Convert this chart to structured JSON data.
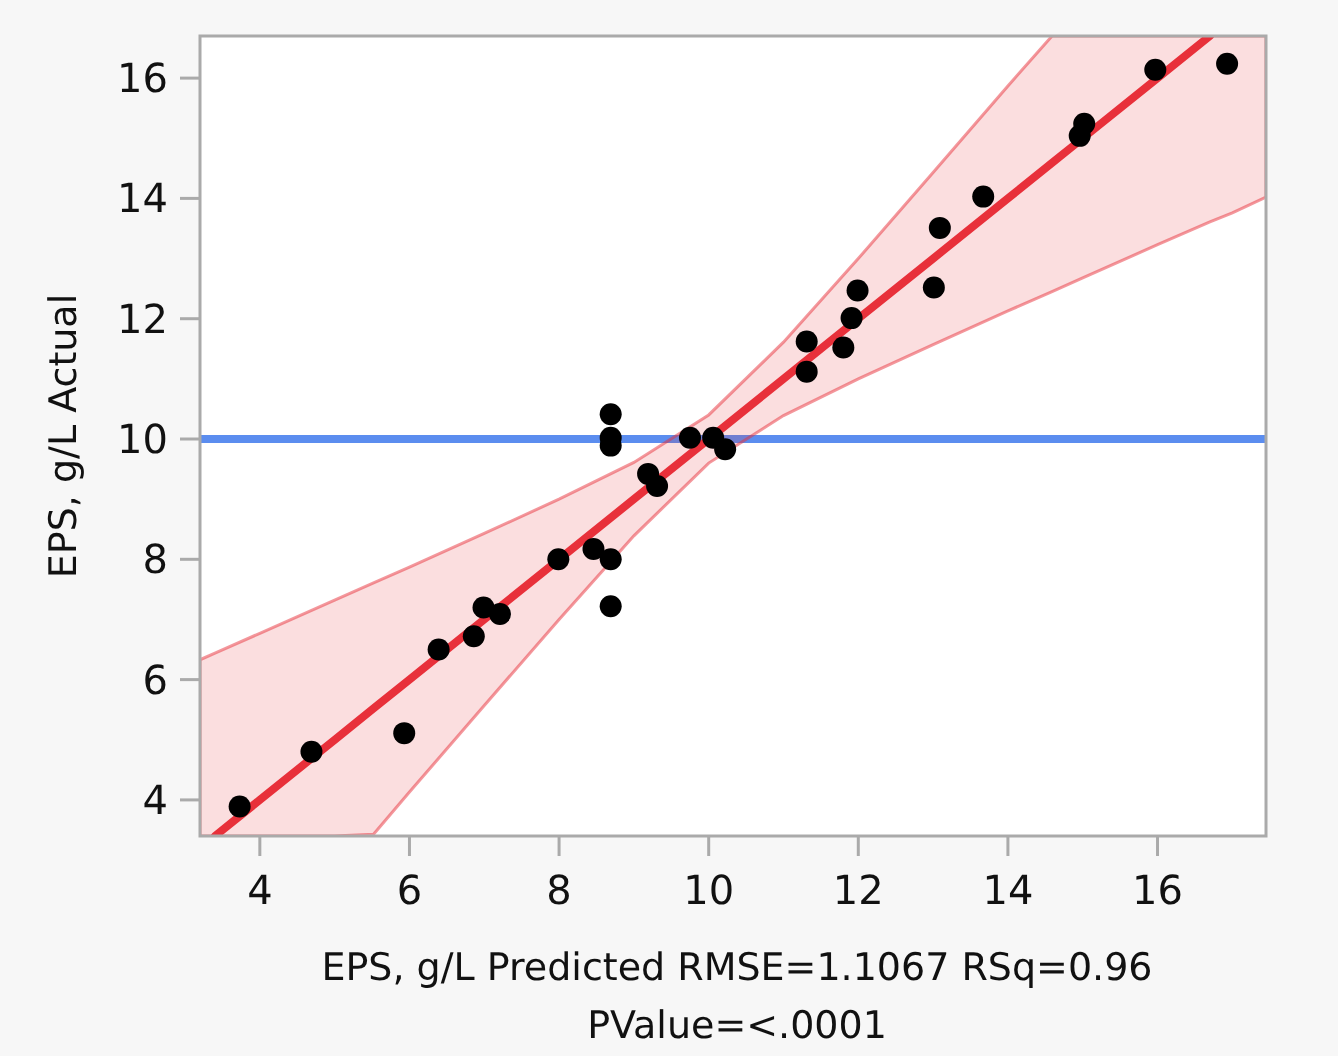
{
  "chart_data": {
    "type": "scatter",
    "xlabel": "EPS, g/L Predicted RMSE=1.1067 RSq=0.96 PValue=<.0001",
    "ylabel": "EPS, g/L Actual",
    "xlim": [
      3.2,
      17.45
    ],
    "ylim": [
      3.4,
      16.7
    ],
    "xticks": [
      4,
      6,
      8,
      10,
      12,
      14,
      16
    ],
    "yticks": [
      4,
      6,
      8,
      10,
      12,
      14,
      16
    ],
    "marker": "circle",
    "ref_lines": [
      {
        "axis": "y",
        "value": 10,
        "color": "#5b8def"
      }
    ],
    "series": [
      {
        "type": "line",
        "marker": "none",
        "color": "#e8303a",
        "x": [
          3.2,
          3.4,
          4,
          5,
          5.52,
          6,
          7,
          8,
          9,
          10,
          11,
          12,
          13,
          14,
          14.59,
          15,
          16,
          16.7,
          17,
          17.45
        ],
        "values": [
          null,
          3.4,
          4,
          5,
          5.52,
          6,
          7,
          8,
          9,
          10,
          11,
          12,
          13,
          14,
          14.59,
          15,
          16,
          16.7,
          null,
          null
        ],
        "lower": [
          3.4,
          3.4,
          3.4,
          3.4,
          3.43,
          4.13,
          5.57,
          7.0,
          8.39,
          9.6,
          10.39,
          11.0,
          11.57,
          12.13,
          12.45,
          12.68,
          13.23,
          13.61,
          13.76,
          14.02
        ],
        "upper": [
          6.33,
          6.44,
          6.77,
          7.32,
          7.61,
          7.87,
          8.43,
          9.0,
          9.61,
          10.4,
          11.61,
          13.0,
          14.43,
          15.87,
          16.7,
          16.7,
          16.7,
          16.7,
          16.7,
          16.7
        ]
      },
      {
        "color": "#000000",
        "x": [
          3.73,
          4.69,
          5.93,
          6.39,
          6.86,
          6.99,
          7.21,
          7.99,
          8.46,
          8.69,
          8.69,
          8.69,
          8.69,
          8.69,
          9.19,
          9.31,
          9.75,
          10.06,
          10.22,
          11.31,
          11.31,
          11.8,
          11.91,
          11.99,
          13.01,
          13.09,
          13.67,
          14.96,
          15.02,
          15.97,
          16.93
        ],
        "values": [
          3.89,
          4.8,
          5.11,
          6.5,
          6.72,
          7.2,
          7.09,
          8.0,
          8.17,
          8.0,
          7.22,
          10.41,
          10.02,
          9.89,
          9.42,
          9.22,
          10.02,
          10.02,
          9.83,
          11.62,
          11.12,
          11.52,
          12.01,
          12.47,
          12.52,
          13.51,
          14.03,
          15.04,
          15.24,
          16.14,
          16.24
        ]
      }
    ]
  }
}
